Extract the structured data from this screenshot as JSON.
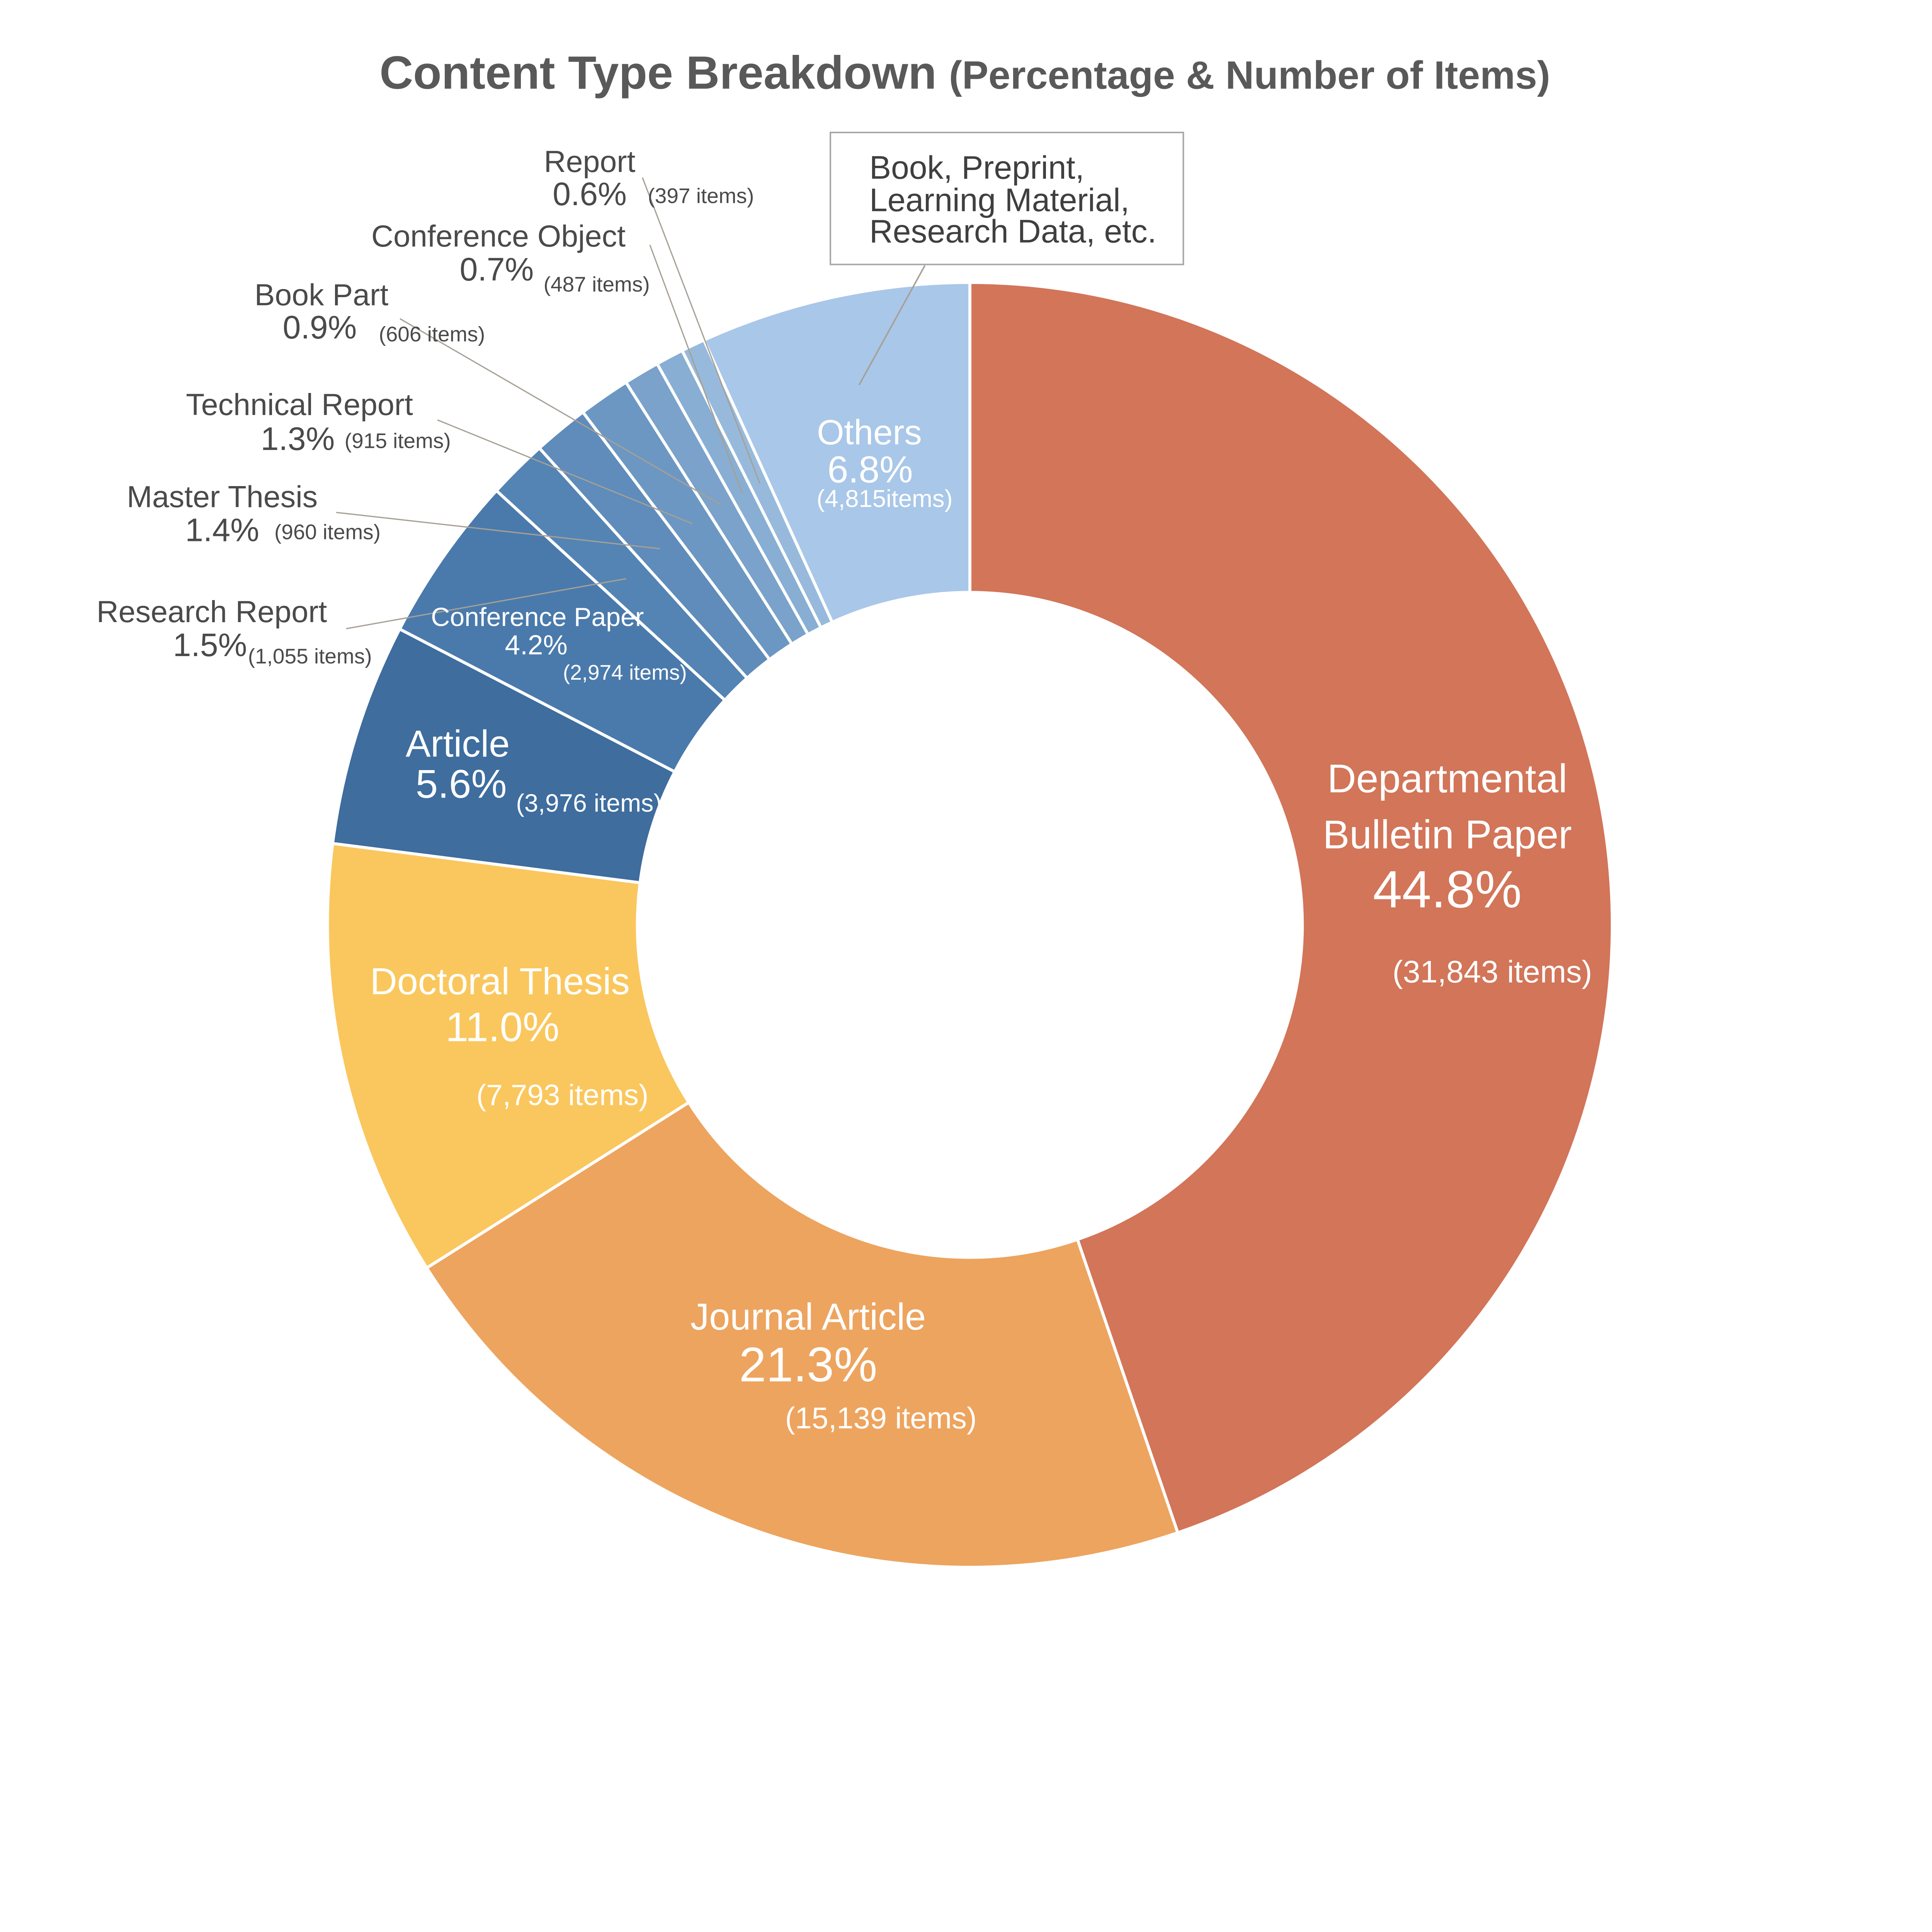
{
  "chart_data": {
    "type": "pie",
    "subtype": "donut",
    "title_main": "Content Type Breakdown",
    "title_sub": "(Percentage & Number of Items)",
    "legend": "none",
    "background": "#FFFFFF",
    "slices": [
      {
        "id": "departmental-bulletin-paper",
        "name": "Departmental Bulletin Paper",
        "name_lines": [
          "Departmental",
          "Bulletin Paper"
        ],
        "percent": 44.8,
        "percent_label": "44.8%",
        "items": 31843,
        "items_label": "(31,843 items)",
        "color": "#D27559",
        "label_position": "inside"
      },
      {
        "id": "journal-article",
        "name": "Journal Article",
        "percent": 21.3,
        "percent_label": "21.3%",
        "items": 15139,
        "items_label": "(15,139 items)",
        "color": "#EDA45F",
        "label_position": "inside"
      },
      {
        "id": "doctoral-thesis",
        "name": "Doctoral Thesis",
        "percent": 11.0,
        "percent_label": "11.0%",
        "items": 7793,
        "items_label": "(7,793 items)",
        "color": "#FAC75E",
        "label_position": "inside"
      },
      {
        "id": "article",
        "name": "Article",
        "percent": 5.6,
        "percent_label": "5.6%",
        "items": 3976,
        "items_label": "(3,976 items)",
        "color": "#3E6D9E",
        "label_position": "inside"
      },
      {
        "id": "conference-paper",
        "name": "Conference Paper",
        "percent": 4.2,
        "percent_label": "4.2%",
        "items": 2974,
        "items_label": "(2,974 items)",
        "color": "#4A7AAB",
        "label_position": "inside"
      },
      {
        "id": "research-report",
        "name": "Research Report",
        "percent": 1.5,
        "percent_label": "1.5%",
        "items": 1055,
        "items_label": "(1,055 items)",
        "color": "#5484B3",
        "label_position": "outside"
      },
      {
        "id": "master-thesis",
        "name": "Master Thesis",
        "percent": 1.4,
        "percent_label": "1.4%",
        "items": 960,
        "items_label": "(960 items)",
        "color": "#5F8CBA",
        "label_position": "outside"
      },
      {
        "id": "technical-report",
        "name": "Technical Report",
        "percent": 1.3,
        "percent_label": "1.3%",
        "items": 915,
        "items_label": "(915 items)",
        "color": "#6C97C2",
        "label_position": "outside"
      },
      {
        "id": "book-part",
        "name": "Book Part",
        "percent": 0.9,
        "percent_label": "0.9%",
        "items": 606,
        "items_label": "(606 items)",
        "color": "#7AA2CA",
        "label_position": "outside"
      },
      {
        "id": "conference-object",
        "name": "Conference Object",
        "percent": 0.7,
        "percent_label": "0.7%",
        "items": 487,
        "items_label": "(487 items)",
        "color": "#88AED3",
        "label_position": "outside"
      },
      {
        "id": "report",
        "name": "Report",
        "percent": 0.6,
        "percent_label": "0.6%",
        "items": 397,
        "items_label": "(397 items)",
        "color": "#97BADC",
        "label_position": "outside"
      },
      {
        "id": "others",
        "name": "Others",
        "percent": 6.8,
        "percent_label": "6.8%",
        "items": 4815,
        "items_label": "(4,815items)",
        "color": "#A9C7E8",
        "label_position": "inside"
      }
    ],
    "callout": {
      "points_to": "others",
      "lines": [
        "Book, Preprint,",
        "Learning Material,",
        "Research Data, etc."
      ]
    },
    "colors": {
      "title_text": "#595959",
      "outside_label_text": "#4A4A4A",
      "inside_label_text": "#FFFFFF",
      "leader_line": "#A6A096",
      "callout_border": "#A6A6A6"
    }
  }
}
